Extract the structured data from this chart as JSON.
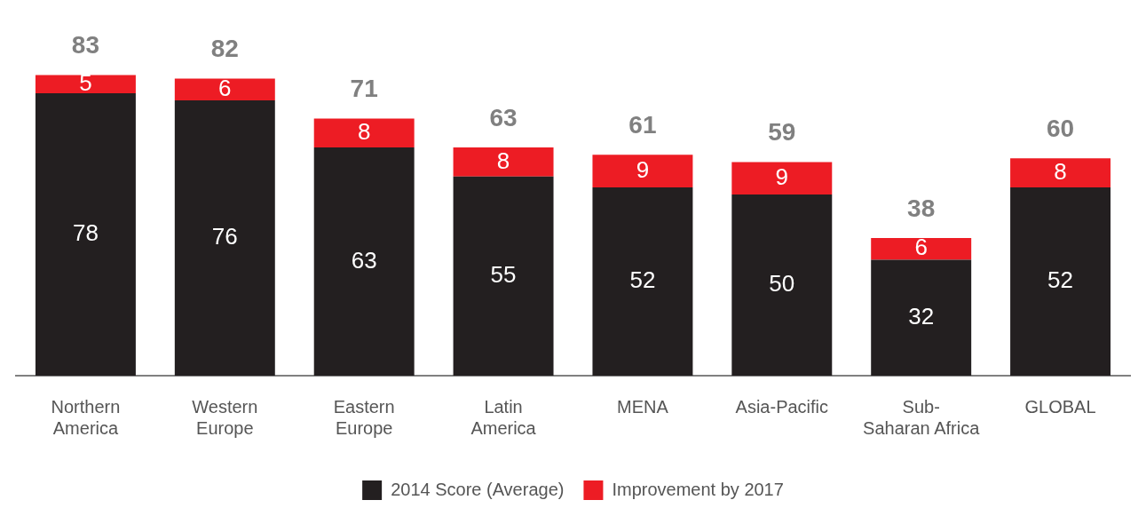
{
  "chart_data": {
    "type": "bar",
    "stacked": true,
    "categories": [
      "Northern\nAmerica",
      "Western\nEurope",
      "Eastern\nEurope",
      "Latin\nAmerica",
      "MENA",
      "Asia-Pacific",
      "Sub-\nSaharan Africa",
      "GLOBAL"
    ],
    "series": [
      {
        "name": "2014 Score (Average)",
        "color": "#231f20",
        "values": [
          78,
          76,
          63,
          55,
          52,
          50,
          32,
          52
        ]
      },
      {
        "name": "Improvement by 2017",
        "color": "#ed1c24",
        "values": [
          5,
          6,
          8,
          8,
          9,
          9,
          6,
          8
        ]
      }
    ],
    "totals": [
      "83",
      "82",
      "71",
      "63",
      "61",
      "59",
      "38",
      "60"
    ],
    "data_labels": true,
    "grid": false,
    "legend": "bottom"
  }
}
